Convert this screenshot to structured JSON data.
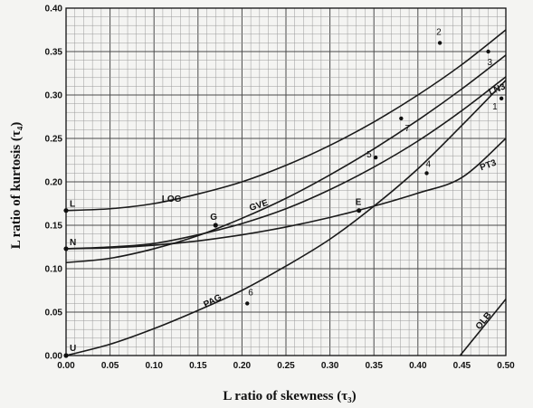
{
  "chart_data": {
    "type": "line",
    "title": "",
    "xlabel": "L ratio of skewness (τ₃)",
    "ylabel": "L ratio of kurtosis (τ₄)",
    "xlim": [
      0.0,
      0.5
    ],
    "ylim": [
      0.0,
      0.4
    ],
    "grid": true,
    "x_ticks": [
      "0.00",
      "0.05",
      "0.10",
      "0.15",
      "0.20",
      "0.25",
      "0.30",
      "0.35",
      "0.40",
      "0.45",
      "0.50"
    ],
    "y_ticks": [
      "0.00",
      "0.05",
      "0.10",
      "0.15",
      "0.20",
      "0.25",
      "0.30",
      "0.35",
      "0.40"
    ],
    "series": [
      {
        "name": "LOG",
        "label": "LOG",
        "x": [
          0,
          0.05,
          0.1,
          0.15,
          0.2,
          0.25,
          0.3,
          0.35,
          0.4,
          0.45,
          0.5
        ],
        "y": [
          0.167,
          0.169,
          0.175,
          0.186,
          0.2,
          0.219,
          0.242,
          0.269,
          0.3,
          0.335,
          0.375
        ]
      },
      {
        "name": "GVE",
        "label": "GVE",
        "x": [
          0,
          0.05,
          0.1,
          0.15,
          0.2,
          0.25,
          0.3,
          0.35,
          0.4,
          0.45,
          0.5
        ],
        "y": [
          0.107,
          0.112,
          0.123,
          0.138,
          0.158,
          0.181,
          0.208,
          0.238,
          0.271,
          0.307,
          0.346
        ]
      },
      {
        "name": "LN3",
        "label": "LN3",
        "x": [
          0,
          0.05,
          0.1,
          0.15,
          0.2,
          0.25,
          0.3,
          0.35,
          0.4,
          0.45,
          0.5
        ],
        "y": [
          0.123,
          0.125,
          0.129,
          0.139,
          0.152,
          0.169,
          0.191,
          0.217,
          0.247,
          0.282,
          0.321
        ]
      },
      {
        "name": "PT3",
        "label": "PT3",
        "x": [
          0,
          0.05,
          0.1,
          0.15,
          0.2,
          0.25,
          0.3,
          0.35,
          0.4,
          0.45,
          0.5
        ],
        "y": [
          0.123,
          0.124,
          0.127,
          0.132,
          0.139,
          0.148,
          0.159,
          0.172,
          0.187,
          0.205,
          0.25
        ]
      },
      {
        "name": "PAG",
        "label": "PAG",
        "x": [
          0,
          0.05,
          0.1,
          0.15,
          0.2,
          0.25,
          0.3,
          0.35,
          0.4,
          0.45,
          0.5
        ],
        "y": [
          0.0,
          0.013,
          0.031,
          0.052,
          0.075,
          0.103,
          0.134,
          0.172,
          0.215,
          0.265,
          0.317
        ]
      },
      {
        "name": "OLB",
        "label": "OLB",
        "x": [
          0.448,
          0.5
        ],
        "y": [
          0.0,
          0.065
        ]
      }
    ],
    "reference_points": [
      {
        "label": "L",
        "x": 0.0,
        "y": 0.167
      },
      {
        "label": "N",
        "x": 0.0,
        "y": 0.123
      },
      {
        "label": "U",
        "x": 0.0,
        "y": 0.0
      },
      {
        "label": "G",
        "x": 0.17,
        "y": 0.15
      },
      {
        "label": "E",
        "x": 0.333,
        "y": 0.167
      }
    ],
    "sample_points": [
      {
        "label": "1",
        "x": 0.495,
        "y": 0.296
      },
      {
        "label": "2",
        "x": 0.425,
        "y": 0.36
      },
      {
        "label": "3",
        "x": 0.48,
        "y": 0.35
      },
      {
        "label": "4",
        "x": 0.41,
        "y": 0.21
      },
      {
        "label": "5",
        "x": 0.352,
        "y": 0.228
      },
      {
        "label": "6",
        "x": 0.206,
        "y": 0.06
      },
      {
        "label": "7",
        "x": 0.381,
        "y": 0.273
      }
    ]
  }
}
